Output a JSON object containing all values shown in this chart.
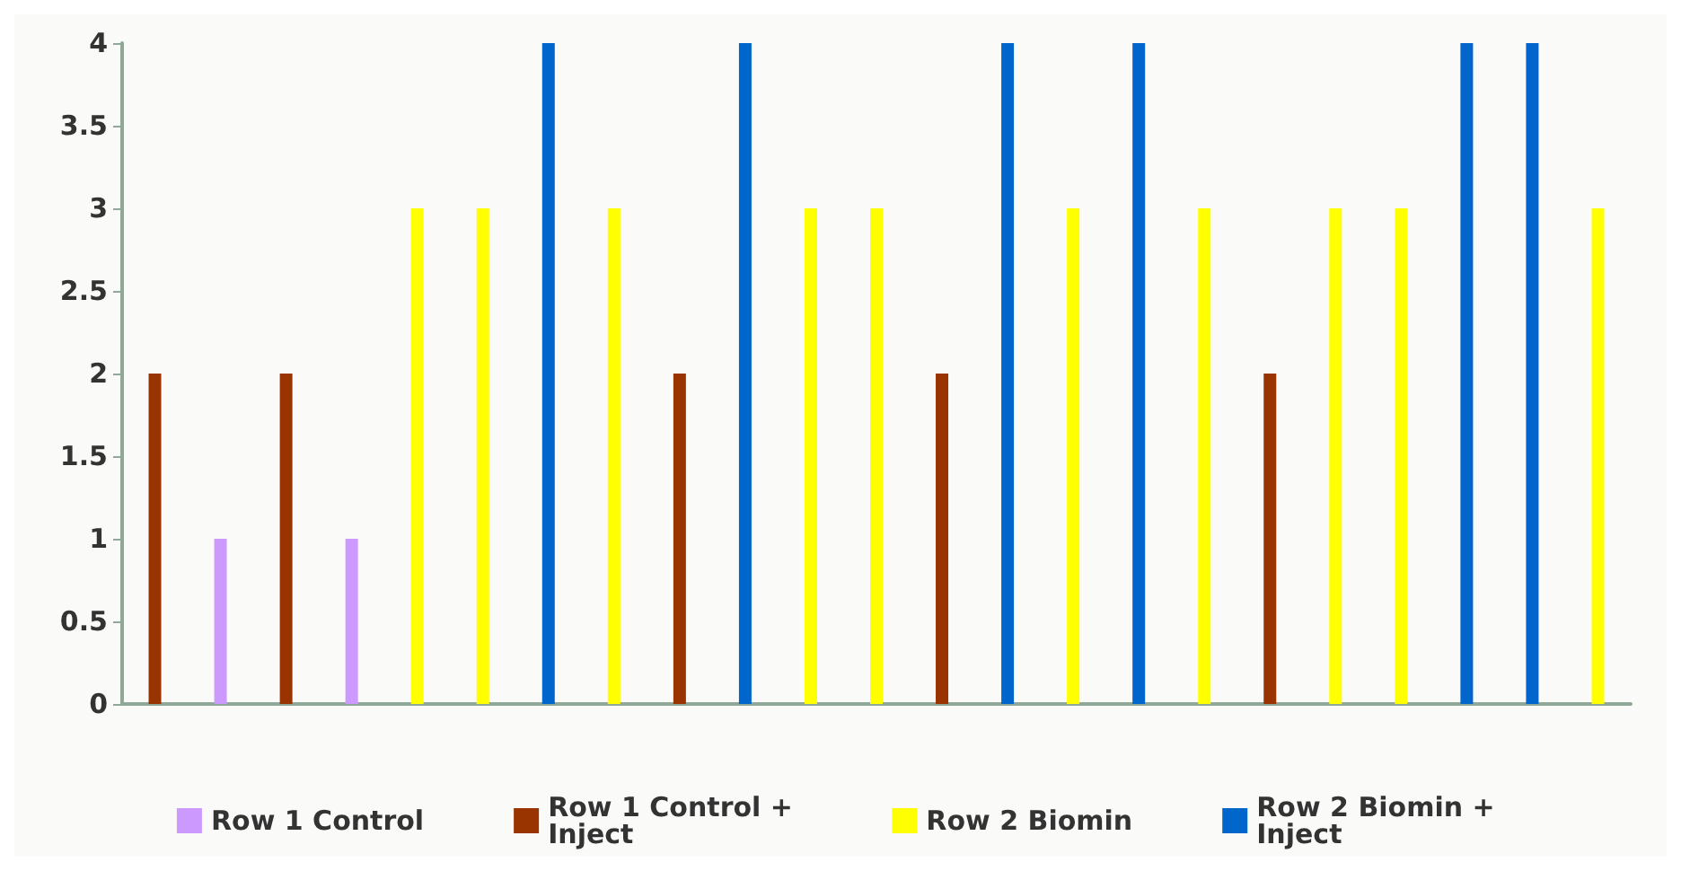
{
  "chart_data": {
    "type": "bar",
    "categories": [
      null,
      null,
      null,
      null,
      null,
      null,
      null,
      null,
      null,
      null,
      null,
      null,
      null,
      null,
      null,
      null,
      null,
      null,
      null,
      null,
      null,
      null,
      null
    ],
    "series": [
      {
        "name": "Row 1 Control",
        "color": "#cc99ff",
        "values": [
          null,
          1,
          null,
          1,
          null,
          null,
          null,
          null,
          null,
          null,
          null,
          null,
          null,
          null,
          null,
          null,
          null,
          null,
          null,
          null,
          null,
          null,
          null
        ]
      },
      {
        "name": "Row 1 Control + Inject",
        "color": "#993300",
        "values": [
          2,
          null,
          2,
          null,
          null,
          null,
          null,
          null,
          2,
          null,
          null,
          null,
          2,
          null,
          null,
          null,
          null,
          2,
          null,
          null,
          null,
          null,
          null
        ]
      },
      {
        "name": "Row 2 Biomin",
        "color": "#ffff00",
        "values": [
          null,
          null,
          null,
          null,
          3,
          3,
          null,
          3,
          null,
          null,
          3,
          3,
          null,
          null,
          3,
          null,
          3,
          null,
          3,
          3,
          null,
          null,
          3
        ]
      },
      {
        "name": "Row 2 Biomin + Inject",
        "color": "#0066cc",
        "values": [
          null,
          null,
          null,
          null,
          null,
          null,
          4,
          null,
          null,
          4,
          null,
          null,
          null,
          4,
          null,
          4,
          null,
          null,
          null,
          null,
          4,
          4,
          null
        ]
      }
    ],
    "ylim": [
      0,
      4
    ],
    "yticks": [
      0,
      0.5,
      1,
      1.5,
      2,
      2.5,
      3,
      3.5,
      4
    ],
    "grid": false,
    "legend": "bottom"
  }
}
